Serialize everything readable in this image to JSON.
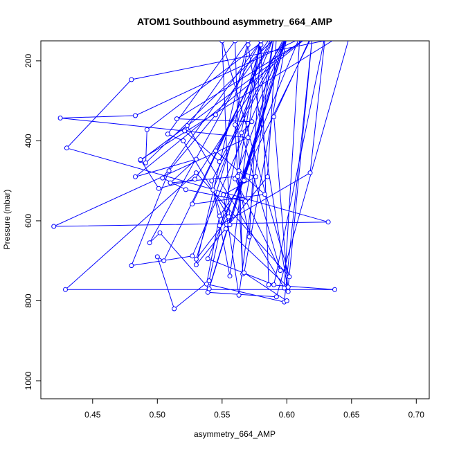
{
  "chart_data": {
    "type": "line",
    "title": "ATOM1 Southbound asymmetry_664_AMP",
    "xlabel": "asymmetry_664_AMP",
    "ylabel": "Pressure (mbar)",
    "xlim": [
      0.41,
      0.71
    ],
    "ylim": [
      1045,
      150
    ],
    "y_reversed": true,
    "x_ticks": [
      0.45,
      0.5,
      0.55,
      0.6,
      0.65,
      0.7
    ],
    "x_tick_labels": [
      "0.45",
      "0.50",
      "0.55",
      "0.60",
      "0.65",
      "0.70"
    ],
    "y_ticks": [
      200,
      400,
      600,
      800,
      1000
    ],
    "y_tick_labels": [
      "200",
      "400",
      "600",
      "800",
      "1000"
    ],
    "series_color": "#0000ff",
    "series": [
      {
        "values": [
          [
            0.69,
            110
          ],
          [
            0.48,
            247
          ],
          [
            0.43,
            418
          ],
          [
            0.632,
            603
          ],
          [
            0.42,
            614
          ],
          [
            0.57,
            392
          ],
          [
            0.425,
            343
          ],
          [
            0.483,
            337
          ],
          [
            0.62,
            130
          ],
          [
            0.487,
            449
          ],
          [
            0.523,
            362
          ],
          [
            0.598,
            768
          ],
          [
            0.61,
            140
          ],
          [
            0.539,
            695
          ],
          [
            0.59,
            760
          ],
          [
            0.63,
            130
          ],
          [
            0.618,
            480
          ],
          [
            0.548,
            612
          ],
          [
            0.62,
            135
          ],
          [
            0.515,
            345
          ],
          [
            0.573,
            352
          ],
          [
            0.565,
            380
          ],
          [
            0.595,
            724
          ],
          [
            0.56,
            495
          ],
          [
            0.6,
            140
          ],
          [
            0.542,
            500
          ],
          [
            0.556,
            738
          ],
          [
            0.58,
            130
          ],
          [
            0.563,
            475
          ],
          [
            0.576,
            490
          ],
          [
            0.551,
            535
          ],
          [
            0.563,
            786
          ],
          [
            0.59,
            140
          ],
          [
            0.545,
            425
          ],
          [
            0.583,
            534
          ],
          [
            0.527,
            558
          ],
          [
            0.59,
            130
          ],
          [
            0.492,
            372
          ],
          [
            0.491,
            455
          ],
          [
            0.592,
            140
          ],
          [
            0.585,
            490
          ],
          [
            0.53,
            710
          ],
          [
            0.57,
            150
          ],
          [
            0.521,
            375
          ],
          [
            0.548,
            452
          ],
          [
            0.6,
            130
          ],
          [
            0.539,
            779
          ],
          [
            0.592,
            790
          ],
          [
            0.65,
            120
          ],
          [
            0.487,
            447
          ],
          [
            0.501,
            519
          ],
          [
            0.529,
            496
          ],
          [
            0.6,
            140
          ],
          [
            0.567,
            499
          ],
          [
            0.548,
            588
          ],
          [
            0.538,
            758
          ],
          [
            0.598,
            803
          ],
          [
            0.62,
            130
          ],
          [
            0.483,
            490
          ],
          [
            0.53,
            446
          ],
          [
            0.51,
            505
          ],
          [
            0.562,
            489
          ],
          [
            0.571,
            640
          ],
          [
            0.58,
            150
          ],
          [
            0.504,
            493
          ],
          [
            0.522,
            522
          ],
          [
            0.568,
            551
          ],
          [
            0.59,
            140
          ],
          [
            0.543,
            523
          ],
          [
            0.553,
            620
          ],
          [
            0.601,
            766
          ],
          [
            0.62,
            130
          ],
          [
            0.59,
            340
          ],
          [
            0.601,
            777
          ],
          [
            0.57,
            160
          ],
          [
            0.56,
            360
          ],
          [
            0.566,
            733
          ],
          [
            0.56,
            150
          ],
          [
            0.508,
            383
          ],
          [
            0.52,
            400
          ],
          [
            0.555,
            590
          ],
          [
            0.53,
            696
          ],
          [
            0.58,
            160
          ],
          [
            0.586,
            760
          ],
          [
            0.637,
            772
          ],
          [
            0.429,
            772
          ],
          [
            0.53,
            480
          ],
          [
            0.602,
            740
          ],
          [
            0.55,
            150
          ],
          [
            0.556,
            610
          ],
          [
            0.6,
            140
          ],
          [
            0.527,
            688
          ],
          [
            0.48,
            712
          ],
          [
            0.509,
            475
          ],
          [
            0.545,
            335
          ],
          [
            0.59,
            130
          ],
          [
            0.505,
            700
          ],
          [
            0.5,
            690
          ],
          [
            0.513,
            820
          ],
          [
            0.54,
            750
          ],
          [
            0.58,
            150
          ],
          [
            0.494,
            655
          ],
          [
            0.502,
            630
          ],
          [
            0.54,
            770
          ],
          [
            0.6,
            140
          ],
          [
            0.567,
            730
          ],
          [
            0.6,
            800
          ]
        ]
      }
    ]
  }
}
